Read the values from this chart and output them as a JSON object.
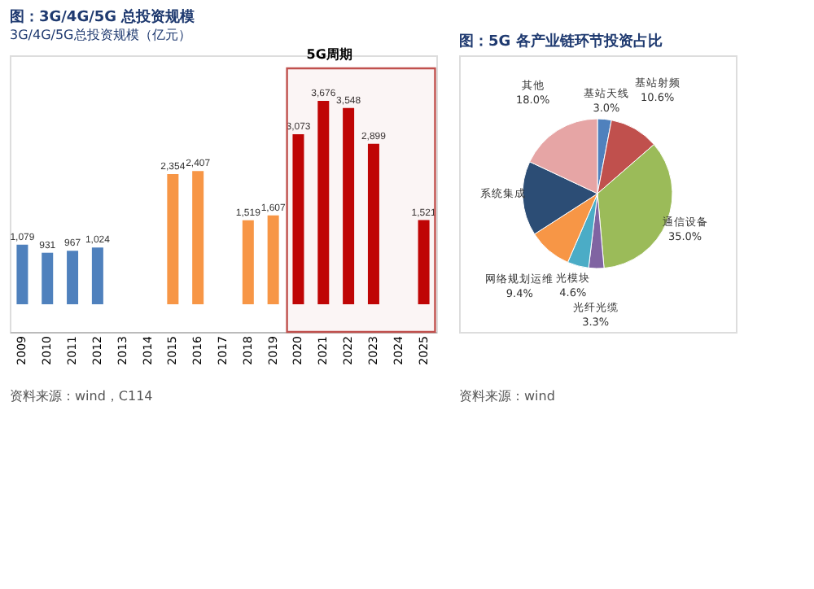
{
  "chart_data": [
    {
      "type": "bar",
      "title": "图：3G/4G/5G 总投资规模",
      "subtitle": "3G/4G/5G总投资规模（亿元）",
      "categories": [
        "2009",
        "2010",
        "2011",
        "2012",
        "2013",
        "2014",
        "2015",
        "2016",
        "2017",
        "2018",
        "2019",
        "2020",
        "2021",
        "2022",
        "2023",
        "2024",
        "2025"
      ],
      "values": [
        1079,
        931,
        967,
        1024,
        null,
        null,
        2354,
        2407,
        null,
        1519,
        1607,
        3073,
        3676,
        3548,
        2899,
        null,
        1521
      ],
      "value_labels": [
        "1,079",
        "931",
        "967",
        "1,024",
        null,
        null,
        "2,354",
        "2,407",
        null,
        "1,519",
        "1,607",
        "3,073",
        "3,676",
        "3,548",
        "2,899",
        null,
        "1,521"
      ],
      "colors": [
        "#4f81bd",
        "#4f81bd",
        "#4f81bd",
        "#4f81bd",
        "#4f81bd",
        "#f79646",
        "#f79646",
        "#f79646",
        "#f79646",
        "#f79646",
        "#f79646",
        "#c00000",
        "#c00000",
        "#c00000",
        "#c00000",
        "#c00000",
        "#c00000"
      ],
      "bands": [
        {
          "axis": "x",
          "from": "2020",
          "to": "2025",
          "label": "5G周期",
          "color": "#c0504d"
        }
      ],
      "annotations": [
        "资料来源：wind，C114"
      ]
    },
    {
      "type": "pie",
      "title": "图：5G 各产业链环节投资占比",
      "categories": [
        "基站天线",
        "基站射频",
        "通信设备",
        "光纤光缆",
        "光模块",
        "网络规划运维",
        "系统集成",
        "其他"
      ],
      "values": [
        3.0,
        10.6,
        35.0,
        3.3,
        4.6,
        9.4,
        16.1,
        18.0
      ],
      "value_labels": [
        "3.0%",
        "10.6%",
        "35.0%",
        "3.3%",
        "4.6%",
        "9.4%",
        null,
        "18.0%"
      ],
      "colors": [
        "#4f81bd",
        "#c0504d",
        "#9bbb59",
        "#8064a2",
        "#4bacc6",
        "#f79646",
        "#2c4d75",
        "#e6a5a5"
      ],
      "annotations": [
        "资料来源：wind"
      ]
    }
  ]
}
